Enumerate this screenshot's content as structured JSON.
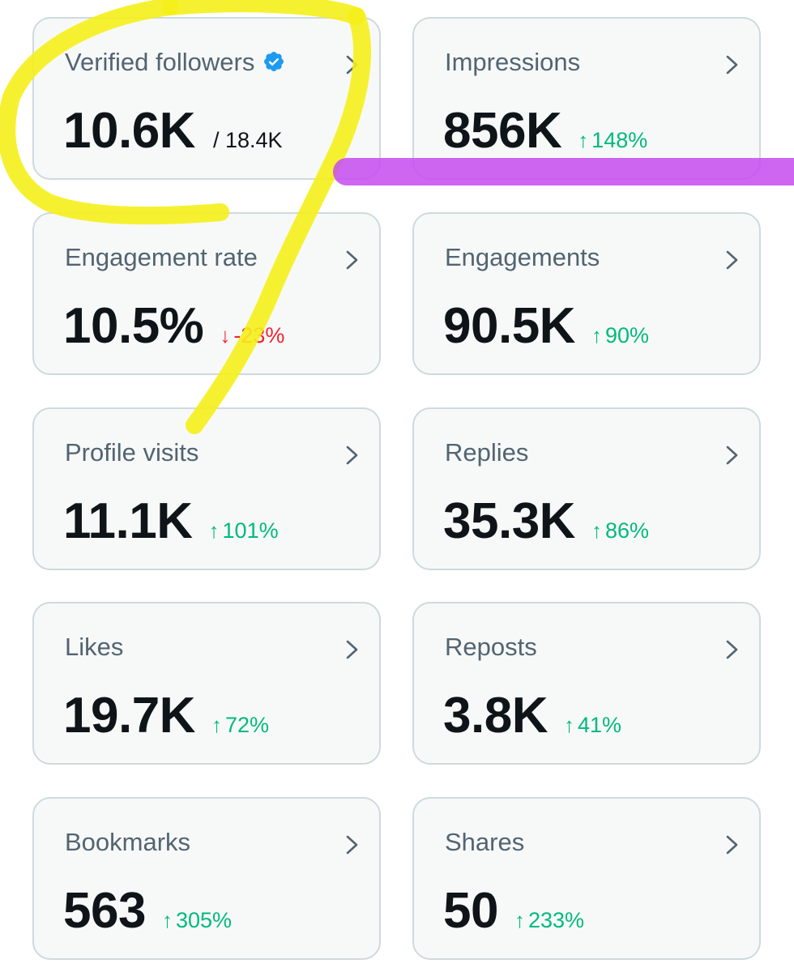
{
  "cards": [
    {
      "label": "Verified followers",
      "value": "10.6K",
      "total": "/ 18.4K",
      "change": "",
      "direction": "none",
      "icon": "verified-badge-icon"
    },
    {
      "label": "Impressions",
      "value": "856K",
      "total": "",
      "change": "148%",
      "direction": "up"
    },
    {
      "label": "Engagement rate",
      "value": "10.5%",
      "total": "",
      "change": "-23%",
      "direction": "down"
    },
    {
      "label": "Engagements",
      "value": "90.5K",
      "total": "",
      "change": "90%",
      "direction": "up"
    },
    {
      "label": "Profile visits",
      "value": "11.1K",
      "total": "",
      "change": "101%",
      "direction": "up"
    },
    {
      "label": "Replies",
      "value": "35.3K",
      "total": "",
      "change": "86%",
      "direction": "up"
    },
    {
      "label": "Likes",
      "value": "19.7K",
      "total": "",
      "change": "72%",
      "direction": "up"
    },
    {
      "label": "Reposts",
      "value": "3.8K",
      "total": "",
      "change": "41%",
      "direction": "up"
    },
    {
      "label": "Bookmarks",
      "value": "563",
      "total": "",
      "change": "305%",
      "direction": "up"
    },
    {
      "label": "Shares",
      "value": "50",
      "total": "",
      "change": "233%",
      "direction": "up"
    }
  ],
  "colors": {
    "card_bg": "#f7f9f9",
    "card_border": "#cfd9de",
    "label": "#536471",
    "value": "#0f1419",
    "up": "#00ba7c",
    "down": "#f4212e",
    "verified": "#1d9bf0",
    "highlight_yellow": "#f5ef1a",
    "highlight_purple": "#c64bf0"
  }
}
